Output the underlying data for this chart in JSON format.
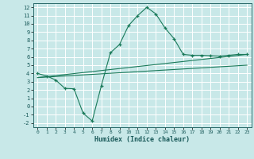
{
  "title": "",
  "xlabel": "Humidex (Indice chaleur)",
  "ylabel": "",
  "bg_color": "#c8e8e8",
  "grid_color": "#ffffff",
  "line_color": "#1a7a5a",
  "xlim": [
    -0.5,
    23.5
  ],
  "ylim": [
    -2.5,
    12.5
  ],
  "x_ticks": [
    0,
    1,
    2,
    3,
    4,
    5,
    6,
    7,
    8,
    9,
    10,
    11,
    12,
    13,
    14,
    15,
    16,
    17,
    18,
    19,
    20,
    21,
    22,
    23
  ],
  "y_ticks": [
    -2,
    -1,
    0,
    1,
    2,
    3,
    4,
    5,
    6,
    7,
    8,
    9,
    10,
    11,
    12
  ],
  "curve1_x": [
    0,
    1,
    2,
    3,
    4,
    5,
    6,
    7,
    8,
    9,
    10,
    11,
    12,
    13,
    14,
    15,
    16,
    17,
    18,
    19,
    20,
    21,
    22,
    23
  ],
  "curve1_y": [
    4.0,
    3.7,
    3.2,
    2.2,
    2.15,
    -0.8,
    -1.75,
    2.5,
    6.5,
    7.5,
    9.8,
    11.0,
    12.0,
    11.2,
    9.5,
    8.2,
    6.3,
    6.2,
    6.2,
    6.15,
    6.1,
    6.2,
    6.3,
    6.3
  ],
  "curve2_x": [
    0,
    23
  ],
  "curve2_y": [
    3.5,
    6.3
  ],
  "curve3_x": [
    0,
    23
  ],
  "curve3_y": [
    3.5,
    5.0
  ]
}
